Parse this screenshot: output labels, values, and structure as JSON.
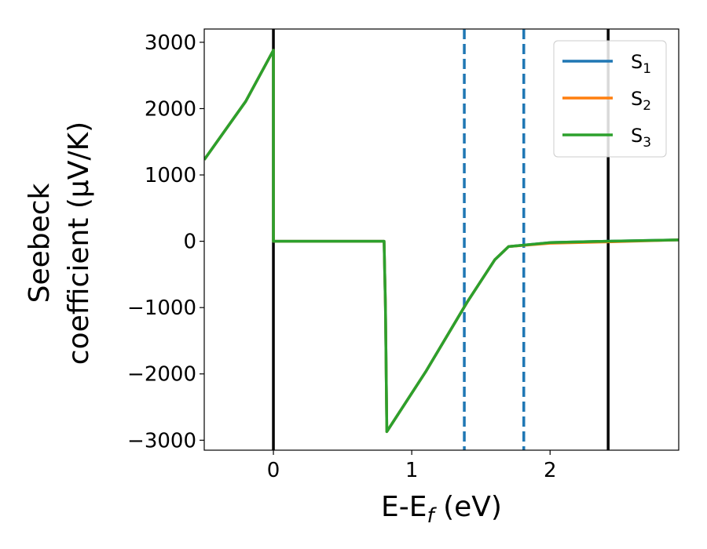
{
  "chart_data": {
    "type": "line",
    "title": "",
    "xlabel": {
      "prefix": "E-E",
      "sub": "f",
      "suffix": " (eV)"
    },
    "ylabel": {
      "line1": "Seebeck",
      "line2": "coefficient  (μV/K)"
    },
    "xlim": [
      -0.5,
      2.93
    ],
    "ylim": [
      -3150,
      3200
    ],
    "x_ticks": [
      0,
      1,
      2
    ],
    "x_tick_labels": [
      "0",
      "1",
      "2"
    ],
    "y_ticks": [
      3000,
      2000,
      1000,
      0,
      -1000,
      -2000,
      -3000
    ],
    "y_tick_labels": [
      "3000",
      "2000",
      "1000",
      "0",
      "−1000",
      "−2000",
      "−3000"
    ],
    "grid": false,
    "legend_position": "top-right",
    "series": [
      {
        "name": "S1",
        "label_main": "S",
        "label_sub": "1",
        "color": "#1f77b4",
        "x": [
          -0.5,
          -0.2,
          0.0,
          0.0,
          0.8,
          0.81,
          0.82,
          1.1,
          1.4,
          1.6,
          1.7,
          2.0,
          2.4,
          2.93
        ],
        "y": [
          1230,
          2110,
          2880,
          0,
          0,
          -1000,
          -2870,
          -1970,
          -920,
          -280,
          -80,
          -20,
          0,
          20
        ]
      },
      {
        "name": "S2",
        "label_main": "S",
        "label_sub": "2",
        "color": "#ff7f0e",
        "x": [
          -0.5,
          -0.2,
          0.0,
          0.0,
          0.8,
          0.81,
          0.82,
          1.1,
          1.4,
          1.6,
          1.7,
          2.0,
          2.4,
          2.93
        ],
        "y": [
          1230,
          2110,
          2880,
          0,
          0,
          -1000,
          -2870,
          -1970,
          -920,
          -280,
          -80,
          -30,
          -10,
          20
        ]
      },
      {
        "name": "S3",
        "label_main": "S",
        "label_sub": "3",
        "color": "#2ca02c",
        "x": [
          -0.5,
          -0.2,
          0.0,
          0.0,
          0.8,
          0.81,
          0.82,
          1.1,
          1.4,
          1.6,
          1.7,
          2.0,
          2.4,
          2.93
        ],
        "y": [
          1230,
          2110,
          2880,
          0,
          0,
          -1000,
          -2870,
          -1970,
          -920,
          -280,
          -80,
          -20,
          0,
          20
        ]
      }
    ],
    "vertical_lines": [
      {
        "x": 0.0,
        "style": "solid",
        "color": "#000000"
      },
      {
        "x": 1.38,
        "style": "dashed",
        "color": "#1f77b4"
      },
      {
        "x": 1.81,
        "style": "dashed",
        "color": "#1f77b4"
      },
      {
        "x": 2.42,
        "style": "solid",
        "color": "#000000"
      }
    ]
  }
}
